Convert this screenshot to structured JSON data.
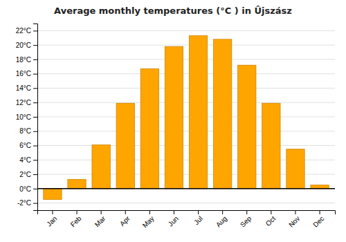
{
  "chart_data": {
    "type": "bar",
    "title": "Average monthly temperatures (°C ) in Ûjszász",
    "categories": [
      "Jan",
      "Feb",
      "Mar",
      "Apr",
      "May",
      "Jun",
      "Jul",
      "Aug",
      "Sep",
      "Oct",
      "Nov",
      "Dec"
    ],
    "values": [
      -1.5,
      1.3,
      6.1,
      11.9,
      16.7,
      19.8,
      21.3,
      20.8,
      17.2,
      11.9,
      5.5,
      0.5
    ],
    "color": "#FFA500",
    "ylim": [
      -3,
      23
    ],
    "yticks": [
      {
        "value": -2,
        "label": "-2°C"
      },
      {
        "value": 0,
        "label": "0°C"
      },
      {
        "value": 2,
        "label": "2°C"
      },
      {
        "value": 4,
        "label": "4°C"
      },
      {
        "value": 6,
        "label": "6°C"
      },
      {
        "value": 8,
        "label": "8°C"
      },
      {
        "value": 10,
        "label": "10°C"
      },
      {
        "value": 12,
        "label": "12°C"
      },
      {
        "value": 14,
        "label": "14°C"
      },
      {
        "value": 16,
        "label": "16°C"
      },
      {
        "value": 18,
        "label": "18°C"
      },
      {
        "value": 20,
        "label": "20°C"
      },
      {
        "value": 22,
        "label": "22°C"
      }
    ],
    "grid": true
  }
}
